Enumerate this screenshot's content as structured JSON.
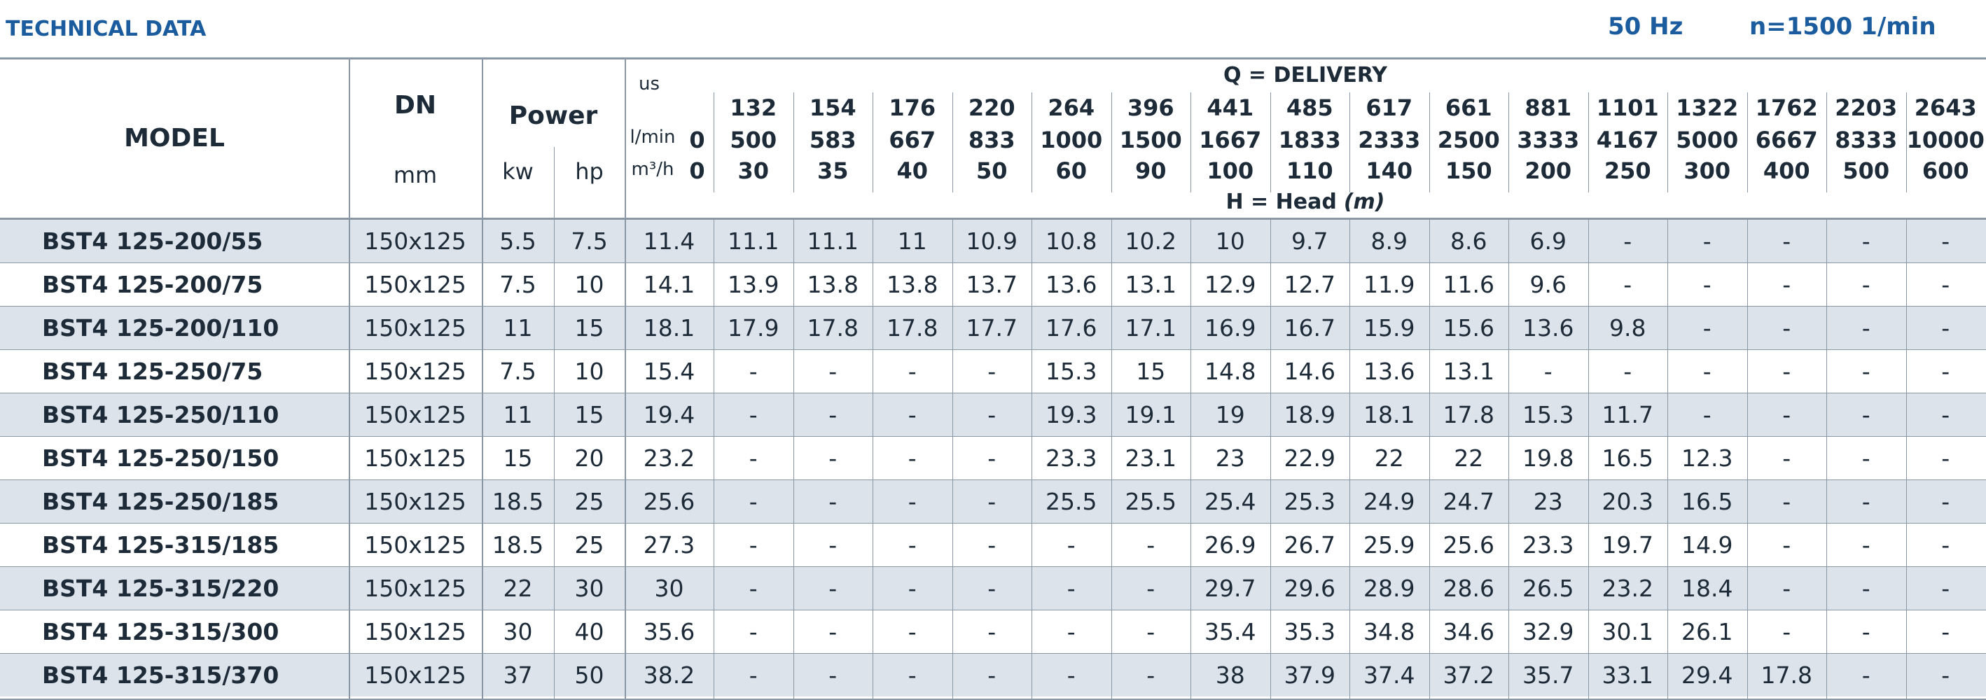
{
  "header": {
    "title": "TECHNICAL DATA",
    "frequency": "50 Hz",
    "speed": "n=1500 1/min"
  },
  "table": {
    "headings": {
      "model": "MODEL",
      "dn": "DN",
      "dn_unit": "mm",
      "power": "Power",
      "kw": "kw",
      "hp": "hp",
      "us": "us",
      "lmin": "l/min",
      "m3h": "m³/h",
      "delivery": "Q = DELIVERY",
      "head": "H = Head",
      "head_unit": "(m)"
    },
    "q_us": [
      null,
      132,
      154,
      176,
      220,
      264,
      396,
      441,
      485,
      617,
      661,
      881,
      1101,
      1322,
      1762,
      2203,
      2643
    ],
    "q_lmin": [
      0,
      500,
      583,
      667,
      833,
      1000,
      1500,
      1667,
      1833,
      2333,
      2500,
      3333,
      4167,
      5000,
      6667,
      8333,
      10000
    ],
    "q_m3h": [
      0,
      30,
      35,
      40,
      50,
      60,
      90,
      100,
      110,
      140,
      150,
      200,
      250,
      300,
      400,
      500,
      600
    ],
    "rows": [
      {
        "model": "BST4 125-200/55",
        "dn": "150x125",
        "kw": 5.5,
        "hp": 7.5,
        "head": [
          11.4,
          11.1,
          11.1,
          11,
          10.9,
          10.8,
          10.2,
          10,
          9.7,
          8.9,
          8.6,
          6.9,
          "-",
          "-",
          "-",
          "-",
          "-"
        ]
      },
      {
        "model": "BST4 125-200/75",
        "dn": "150x125",
        "kw": 7.5,
        "hp": 10,
        "head": [
          14.1,
          13.9,
          13.8,
          13.8,
          13.7,
          13.6,
          13.1,
          12.9,
          12.7,
          11.9,
          11.6,
          9.6,
          "-",
          "-",
          "-",
          "-",
          "-"
        ]
      },
      {
        "model": "BST4 125-200/110",
        "dn": "150x125",
        "kw": 11,
        "hp": 15,
        "head": [
          18.1,
          17.9,
          17.8,
          17.8,
          17.7,
          17.6,
          17.1,
          16.9,
          16.7,
          15.9,
          15.6,
          13.6,
          9.8,
          "-",
          "-",
          "-",
          "-"
        ]
      },
      {
        "model": "BST4 125-250/75",
        "dn": "150x125",
        "kw": 7.5,
        "hp": 10,
        "head": [
          15.4,
          "-",
          "-",
          "-",
          "-",
          15.3,
          15,
          14.8,
          14.6,
          13.6,
          13.1,
          "-",
          "-",
          "-",
          "-",
          "-",
          "-"
        ]
      },
      {
        "model": "BST4 125-250/110",
        "dn": "150x125",
        "kw": 11,
        "hp": 15,
        "head": [
          19.4,
          "-",
          "-",
          "-",
          "-",
          19.3,
          19.1,
          19,
          18.9,
          18.1,
          17.8,
          15.3,
          11.7,
          "-",
          "-",
          "-",
          "-"
        ]
      },
      {
        "model": "BST4 125-250/150",
        "dn": "150x125",
        "kw": 15,
        "hp": 20,
        "head": [
          23.2,
          "-",
          "-",
          "-",
          "-",
          23.3,
          23.1,
          23,
          22.9,
          22,
          22,
          19.8,
          16.5,
          12.3,
          "-",
          "-",
          "-"
        ]
      },
      {
        "model": "BST4 125-250/185",
        "dn": "150x125",
        "kw": 18.5,
        "hp": 25,
        "head": [
          25.6,
          "-",
          "-",
          "-",
          "-",
          25.5,
          25.5,
          25.4,
          25.3,
          24.9,
          24.7,
          23,
          20.3,
          16.5,
          "-",
          "-",
          "-"
        ]
      },
      {
        "model": "BST4 125-315/185",
        "dn": "150x125",
        "kw": 18.5,
        "hp": 25,
        "head": [
          27.3,
          "-",
          "-",
          "-",
          "-",
          "-",
          "-",
          26.9,
          26.7,
          25.9,
          25.6,
          23.3,
          19.7,
          14.9,
          "-",
          "-",
          "-"
        ]
      },
      {
        "model": "BST4 125-315/220",
        "dn": "150x125",
        "kw": 22,
        "hp": 30,
        "head": [
          30,
          "-",
          "-",
          "-",
          "-",
          "-",
          "-",
          29.7,
          29.6,
          28.9,
          28.6,
          26.5,
          23.2,
          18.4,
          "-",
          "-",
          "-"
        ]
      },
      {
        "model": "BST4 125-315/300",
        "dn": "150x125",
        "kw": 30,
        "hp": 40,
        "head": [
          35.6,
          "-",
          "-",
          "-",
          "-",
          "-",
          "-",
          35.4,
          35.3,
          34.8,
          34.6,
          32.9,
          30.1,
          26.1,
          "-",
          "-",
          "-"
        ]
      },
      {
        "model": "BST4 125-315/370",
        "dn": "150x125",
        "kw": 37,
        "hp": 50,
        "head": [
          38.2,
          "-",
          "-",
          "-",
          "-",
          "-",
          "-",
          38,
          37.9,
          37.4,
          37.2,
          35.7,
          33.1,
          29.4,
          17.8,
          "-",
          "-"
        ]
      }
    ]
  }
}
